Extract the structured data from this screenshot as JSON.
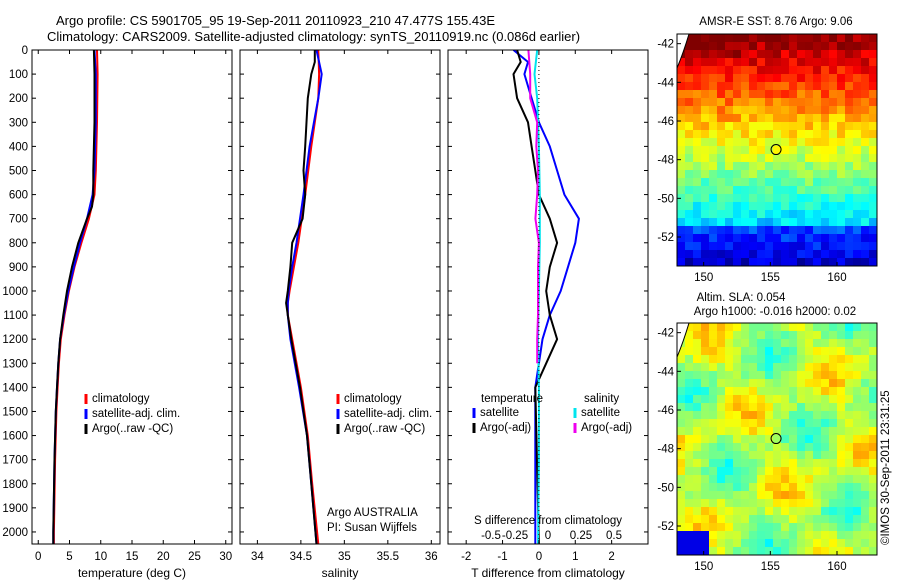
{
  "header": {
    "line1": "Argo profile: CS 5901705_95 19-Sep-2011 20110923_210 47.477S 155.43E",
    "line2": "Climatology: CARS2009. Satellite-adjusted climatology: synTS_20110919.nc (0.086d earlier)"
  },
  "colors": {
    "climatology": "#ff0000",
    "satellite": "#0000ff",
    "argo": "#000000",
    "sat_sal": "#00e5ee",
    "argo_sal": "#ee00ee"
  },
  "chart_data": [
    {
      "type": "line",
      "panel": "temperature",
      "xlabel": "temperature (deg C)",
      "xlim": [
        -1,
        31
      ],
      "ylim": [
        0,
        2050
      ],
      "y_reversed": true,
      "x_ticks": [
        "0",
        "5",
        "10",
        "15",
        "20",
        "25",
        "30"
      ],
      "y_ticks": [
        "0",
        "100",
        "200",
        "300",
        "400",
        "500",
        "600",
        "700",
        "800",
        "900",
        "1000",
        "1100",
        "1200",
        "1300",
        "1400",
        "1500",
        "1600",
        "1700",
        "1800",
        "1900",
        "2000"
      ],
      "legend": [
        "climatology",
        "satellite-adj. clim.",
        "Argo(..raw -QC)"
      ],
      "series": [
        {
          "name": "climatology",
          "color": "#ff0000",
          "depth": [
            0,
            100,
            300,
            500,
            600,
            700,
            800,
            900,
            1000,
            1100,
            1200,
            1300,
            1400,
            1500,
            1700,
            2000,
            2050
          ],
          "values": [
            9.4,
            9.5,
            9.4,
            9.2,
            9.0,
            8.1,
            6.9,
            5.8,
            4.9,
            4.2,
            3.6,
            3.3,
            3.1,
            2.9,
            2.7,
            2.5,
            2.5
          ]
        },
        {
          "name": "satellite-adj. clim.",
          "color": "#0000ff",
          "depth": [
            0,
            100,
            300,
            500,
            600,
            700,
            800,
            900,
            1000,
            1100,
            1200,
            1300,
            1400,
            1500,
            1700,
            2000,
            2050
          ],
          "values": [
            9.0,
            9.2,
            9.2,
            9.0,
            8.7,
            7.8,
            6.7,
            5.7,
            4.8,
            4.1,
            3.5,
            3.2,
            3.0,
            2.8,
            2.6,
            2.4,
            2.4
          ]
        },
        {
          "name": "Argo(..raw -QC)",
          "color": "#000000",
          "depth": [
            0,
            100,
            300,
            500,
            600,
            650,
            700,
            800,
            900,
            1000,
            1100,
            1200,
            1300,
            1400,
            1500,
            1700,
            2000,
            2050
          ],
          "values": [
            8.9,
            9.0,
            9.0,
            8.8,
            8.8,
            8.6,
            7.8,
            6.4,
            5.4,
            4.6,
            4.0,
            3.5,
            3.2,
            3.0,
            2.8,
            2.6,
            2.4,
            2.4
          ]
        }
      ]
    },
    {
      "type": "line",
      "panel": "salinity",
      "xlabel": "salinity",
      "xlim": [
        33.8,
        36.1
      ],
      "ylim": [
        0,
        2050
      ],
      "y_reversed": true,
      "x_ticks": [
        "34",
        "34.5",
        "35",
        "35.5",
        "36"
      ],
      "legend": [
        "climatology",
        "satellite-adj. clim.",
        "Argo(..raw -QC)"
      ],
      "annotation": [
        "Argo AUSTRALIA",
        "PI: Susan Wijffels"
      ],
      "series": [
        {
          "name": "climatology",
          "color": "#ff0000",
          "depth": [
            0,
            100,
            200,
            400,
            600,
            800,
            900,
            1000,
            1050,
            1100,
            1200,
            1400,
            1600,
            1800,
            2050
          ],
          "values": [
            34.7,
            34.71,
            34.7,
            34.62,
            34.55,
            34.47,
            34.42,
            34.37,
            34.35,
            34.35,
            34.4,
            34.5,
            34.58,
            34.63,
            34.7
          ]
        },
        {
          "name": "satellite-adj. clim.",
          "color": "#0000ff",
          "depth": [
            0,
            100,
            200,
            400,
            600,
            800,
            900,
            1000,
            1050,
            1100,
            1200,
            1400,
            1600,
            1800,
            2050
          ],
          "values": [
            34.68,
            34.74,
            34.7,
            34.6,
            34.53,
            34.45,
            34.4,
            34.36,
            34.35,
            34.35,
            34.38,
            34.48,
            34.57,
            34.62,
            34.68
          ]
        },
        {
          "name": "Argo(..raw -QC)",
          "color": "#000000",
          "depth": [
            0,
            50,
            100,
            200,
            400,
            500,
            600,
            700,
            800,
            900,
            1000,
            1050,
            1100,
            1200,
            1400,
            1600,
            1800,
            2050
          ],
          "values": [
            34.66,
            34.66,
            34.62,
            34.58,
            34.55,
            34.53,
            34.55,
            34.52,
            34.4,
            34.38,
            34.35,
            34.33,
            34.35,
            34.39,
            34.49,
            34.57,
            34.62,
            34.68
          ]
        }
      ]
    },
    {
      "type": "line",
      "panel": "difference",
      "xlabel": "T difference from climatology",
      "x2label": "S difference from climatology",
      "xlim": [
        -2.5,
        3
      ],
      "ylim": [
        0,
        2050
      ],
      "y_reversed": true,
      "x_ticks": [
        "-2",
        "-1",
        "0",
        "1",
        "2"
      ],
      "x2_ticks": [
        "-0.5",
        "-0.25",
        "0",
        "0.25",
        "0.5"
      ],
      "legend_headers": [
        "temperature",
        "salinity"
      ],
      "legend": [
        "satellite",
        "Argo(-adj)",
        "satellite",
        "Argo(-adj)"
      ],
      "series": [
        {
          "name": "satellite",
          "color": "#0000ff",
          "depth": [
            0,
            50,
            100,
            200,
            300,
            400,
            500,
            600,
            700,
            800,
            900,
            1000,
            1100,
            1200,
            1300,
            1400,
            2050
          ],
          "values": [
            -0.7,
            -0.3,
            -0.4,
            -0.2,
            0.0,
            0.3,
            0.5,
            0.7,
            1.1,
            1.0,
            0.8,
            0.6,
            0.3,
            0.1,
            0.0,
            -0.1,
            -0.1
          ]
        },
        {
          "name": "Argo(-adj)",
          "color": "#000000",
          "depth": [
            0,
            50,
            100,
            200,
            300,
            400,
            500,
            600,
            700,
            800,
            900,
            1000,
            1100,
            1200,
            1300,
            1400,
            2050
          ],
          "values": [
            -0.6,
            -0.5,
            -0.7,
            -0.6,
            -0.3,
            -0.2,
            -0.1,
            0.0,
            0.3,
            0.5,
            0.3,
            0.2,
            0.3,
            0.5,
            0.2,
            -0.1,
            0.0
          ]
        },
        {
          "name": "satellite",
          "color": "#00e5ee",
          "depth": [
            0,
            100,
            200,
            400,
            600,
            800,
            1000,
            1200,
            1400,
            1700,
            2050
          ],
          "values": [
            -0.02,
            -0.05,
            -0.02,
            0.0,
            0.01,
            0.01,
            0.0,
            -0.01,
            0.0,
            0.0,
            -0.01
          ]
        },
        {
          "name": "Argo(-adj)",
          "color": "#ee00ee",
          "depth": [
            0,
            100,
            200,
            300,
            400,
            500,
            600,
            700,
            800,
            900,
            1000,
            1100,
            1200,
            1300
          ],
          "values": [
            -0.12,
            -0.1,
            -0.1,
            -0.02,
            -0.03,
            -0.01,
            -0.02,
            -0.04,
            0.0,
            -0.01,
            -0.01,
            -0.01,
            -0.02,
            -0.02
          ]
        }
      ]
    },
    {
      "type": "heatmap",
      "panel": "sst-map",
      "title": "AMSR-E SST: 8.76  Argo: 9.06",
      "x_ticks": [
        "150",
        "155",
        "160"
      ],
      "y_ticks": [
        "-42",
        "-44",
        "-46",
        "-48",
        "-50",
        "-52"
      ],
      "xlim": [
        148,
        163
      ],
      "ylim": [
        -53.5,
        -41.5
      ],
      "marker": {
        "lon": 155.43,
        "lat": -47.477
      }
    },
    {
      "type": "heatmap",
      "panel": "sla-map",
      "title": "Altim. SLA: 0.054",
      "subtitle": "Argo h1000: -0.016 h2000: 0.02",
      "x_ticks": [
        "150",
        "155",
        "160"
      ],
      "y_ticks": [
        "-42",
        "-44",
        "-46",
        "-48",
        "-50",
        "-52"
      ],
      "xlim": [
        148,
        163
      ],
      "ylim": [
        -53.5,
        -41.5
      ],
      "marker": {
        "lon": 155.43,
        "lat": -47.477
      }
    }
  ],
  "footer": {
    "credit": "©IMOS 30-Sep-2011 23:31:25"
  }
}
